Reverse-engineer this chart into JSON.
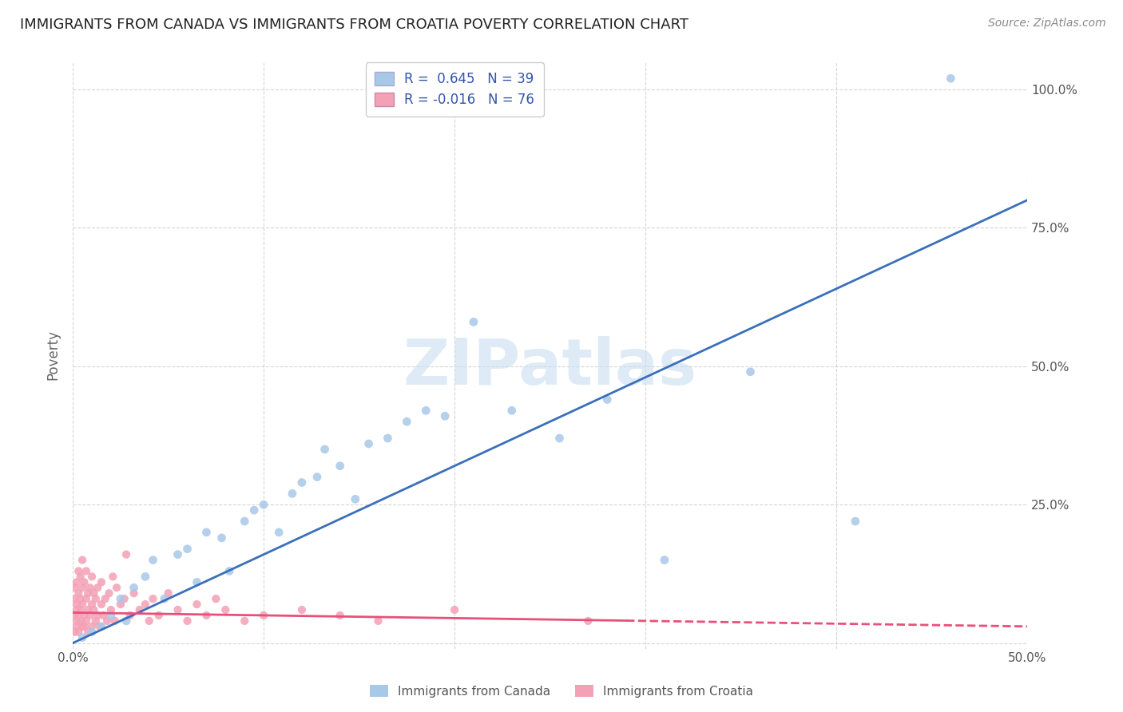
{
  "title": "IMMIGRANTS FROM CANADA VS IMMIGRANTS FROM CROATIA POVERTY CORRELATION CHART",
  "source": "Source: ZipAtlas.com",
  "ylabel": "Poverty",
  "xlim": [
    0,
    0.5
  ],
  "ylim": [
    0,
    1.05
  ],
  "canada_color": "#a8c8e8",
  "croatia_color": "#f4a0b5",
  "canada_line_color": "#3a6fba",
  "croatia_line_color": "#e8507a",
  "watermark_color": "#c8dff0",
  "watermark": "ZIPatlas",
  "legend_R_canada": "0.645",
  "legend_N_canada": "39",
  "legend_R_croatia": "-0.016",
  "legend_N_croatia": "76",
  "canada_x": [
    0.005,
    0.01,
    0.015,
    0.02,
    0.025,
    0.028,
    0.032,
    0.038,
    0.042,
    0.048,
    0.055,
    0.06,
    0.065,
    0.07,
    0.078,
    0.082,
    0.09,
    0.095,
    0.1,
    0.108,
    0.115,
    0.12,
    0.128,
    0.132,
    0.14,
    0.148,
    0.155,
    0.165,
    0.175,
    0.185,
    0.195,
    0.21,
    0.23,
    0.255,
    0.28,
    0.31,
    0.355,
    0.41,
    0.46
  ],
  "canada_y": [
    0.01,
    0.02,
    0.03,
    0.05,
    0.08,
    0.04,
    0.1,
    0.12,
    0.15,
    0.08,
    0.16,
    0.17,
    0.11,
    0.2,
    0.19,
    0.13,
    0.22,
    0.24,
    0.25,
    0.2,
    0.27,
    0.29,
    0.3,
    0.35,
    0.32,
    0.26,
    0.36,
    0.37,
    0.4,
    0.42,
    0.41,
    0.58,
    0.42,
    0.37,
    0.44,
    0.15,
    0.49,
    0.22,
    1.02
  ],
  "croatia_x": [
    0.001,
    0.001,
    0.001,
    0.001,
    0.002,
    0.002,
    0.002,
    0.002,
    0.002,
    0.003,
    0.003,
    0.003,
    0.003,
    0.004,
    0.004,
    0.004,
    0.004,
    0.005,
    0.005,
    0.005,
    0.005,
    0.006,
    0.006,
    0.006,
    0.007,
    0.007,
    0.007,
    0.008,
    0.008,
    0.008,
    0.009,
    0.009,
    0.01,
    0.01,
    0.01,
    0.011,
    0.011,
    0.012,
    0.012,
    0.013,
    0.013,
    0.014,
    0.015,
    0.015,
    0.016,
    0.017,
    0.018,
    0.019,
    0.02,
    0.021,
    0.022,
    0.023,
    0.025,
    0.027,
    0.028,
    0.03,
    0.032,
    0.035,
    0.038,
    0.04,
    0.042,
    0.045,
    0.05,
    0.055,
    0.06,
    0.065,
    0.07,
    0.075,
    0.08,
    0.09,
    0.1,
    0.12,
    0.14,
    0.16,
    0.2,
    0.27
  ],
  "croatia_y": [
    0.05,
    0.08,
    0.02,
    0.1,
    0.06,
    0.03,
    0.11,
    0.07,
    0.04,
    0.09,
    0.05,
    0.13,
    0.02,
    0.08,
    0.04,
    0.12,
    0.06,
    0.1,
    0.03,
    0.15,
    0.07,
    0.05,
    0.11,
    0.03,
    0.08,
    0.04,
    0.13,
    0.06,
    0.09,
    0.02,
    0.1,
    0.05,
    0.07,
    0.03,
    0.12,
    0.06,
    0.09,
    0.04,
    0.08,
    0.05,
    0.1,
    0.03,
    0.07,
    0.11,
    0.05,
    0.08,
    0.04,
    0.09,
    0.06,
    0.12,
    0.04,
    0.1,
    0.07,
    0.08,
    0.16,
    0.05,
    0.09,
    0.06,
    0.07,
    0.04,
    0.08,
    0.05,
    0.09,
    0.06,
    0.04,
    0.07,
    0.05,
    0.08,
    0.06,
    0.04,
    0.05,
    0.06,
    0.05,
    0.04,
    0.06,
    0.04
  ]
}
